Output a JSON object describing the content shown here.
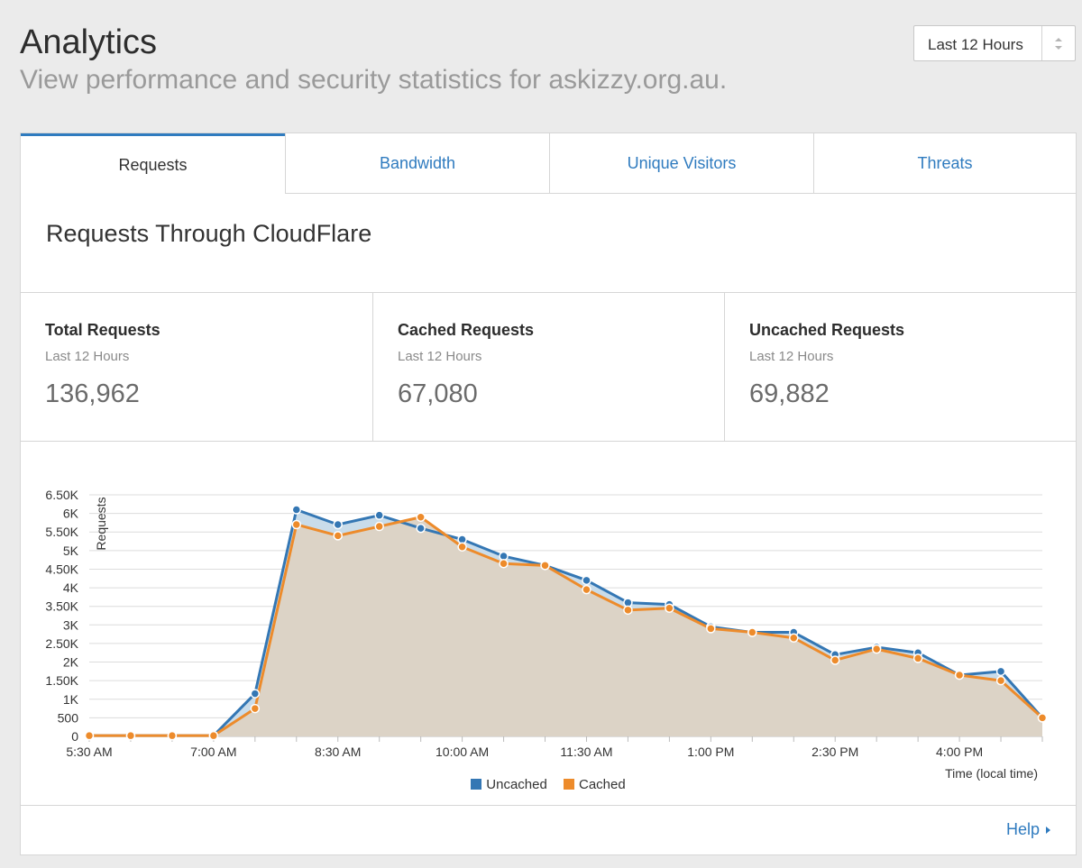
{
  "header": {
    "title": "Analytics",
    "subtitle": "View performance and security statistics for askizzy.org.au."
  },
  "time_range": {
    "selected": "Last 12 Hours"
  },
  "tabs": [
    {
      "label": "Requests",
      "active": true
    },
    {
      "label": "Bandwidth",
      "active": false
    },
    {
      "label": "Unique Visitors",
      "active": false
    },
    {
      "label": "Threats",
      "active": false
    }
  ],
  "section": {
    "title": "Requests Through CloudFlare"
  },
  "stats": [
    {
      "label": "Total Requests",
      "period": "Last 12 Hours",
      "value": "136,962"
    },
    {
      "label": "Cached Requests",
      "period": "Last 12 Hours",
      "value": "67,080"
    },
    {
      "label": "Uncached Requests",
      "period": "Last 12 Hours",
      "value": "69,882"
    }
  ],
  "footer": {
    "help_label": "Help"
  },
  "colors": {
    "accent": "#2f7bbf",
    "uncached": "#3477b4",
    "cached": "#ed8b2b",
    "area_fill": "#dcd3c6"
  },
  "chart_data": {
    "type": "area",
    "ylabel": "Requests",
    "xlabel": "Time (local time)",
    "ylim": [
      0,
      6500
    ],
    "y_ticks": [
      "0",
      "500",
      "1K",
      "1.50K",
      "2K",
      "2.50K",
      "3K",
      "3.50K",
      "4K",
      "4.50K",
      "5K",
      "5.50K",
      "6K",
      "6.50K"
    ],
    "x": [
      "5:30 AM",
      "6:00 AM",
      "6:30 AM",
      "7:00 AM",
      "7:30 AM",
      "8:00 AM",
      "8:30 AM",
      "9:00 AM",
      "9:30 AM",
      "10:00 AM",
      "10:30 AM",
      "11:00 AM",
      "11:30 AM",
      "12:00 PM",
      "12:30 PM",
      "1:00 PM",
      "1:30 PM",
      "2:00 PM",
      "2:30 PM",
      "3:00 PM",
      "3:30 PM",
      "4:00 PM",
      "4:30 PM",
      "5:00 PM"
    ],
    "x_tick_labels": [
      "5:30 AM",
      "7:00 AM",
      "8:30 AM",
      "10:00 AM",
      "11:30 AM",
      "1:00 PM",
      "2:30 PM",
      "4:00 PM"
    ],
    "grid": true,
    "legend_position": "bottom",
    "series": [
      {
        "name": "Uncached",
        "values": [
          20,
          20,
          20,
          20,
          1150,
          6100,
          5700,
          5950,
          5600,
          5300,
          4850,
          4600,
          4200,
          3600,
          3550,
          2950,
          2800,
          2800,
          2200,
          2400,
          2250,
          1650,
          1750,
          500
        ]
      },
      {
        "name": "Cached",
        "values": [
          20,
          20,
          20,
          20,
          750,
          5700,
          5400,
          5650,
          5900,
          5100,
          4650,
          4600,
          3950,
          3400,
          3450,
          2900,
          2800,
          2650,
          2050,
          2350,
          2100,
          1650,
          1500,
          500
        ]
      }
    ]
  }
}
